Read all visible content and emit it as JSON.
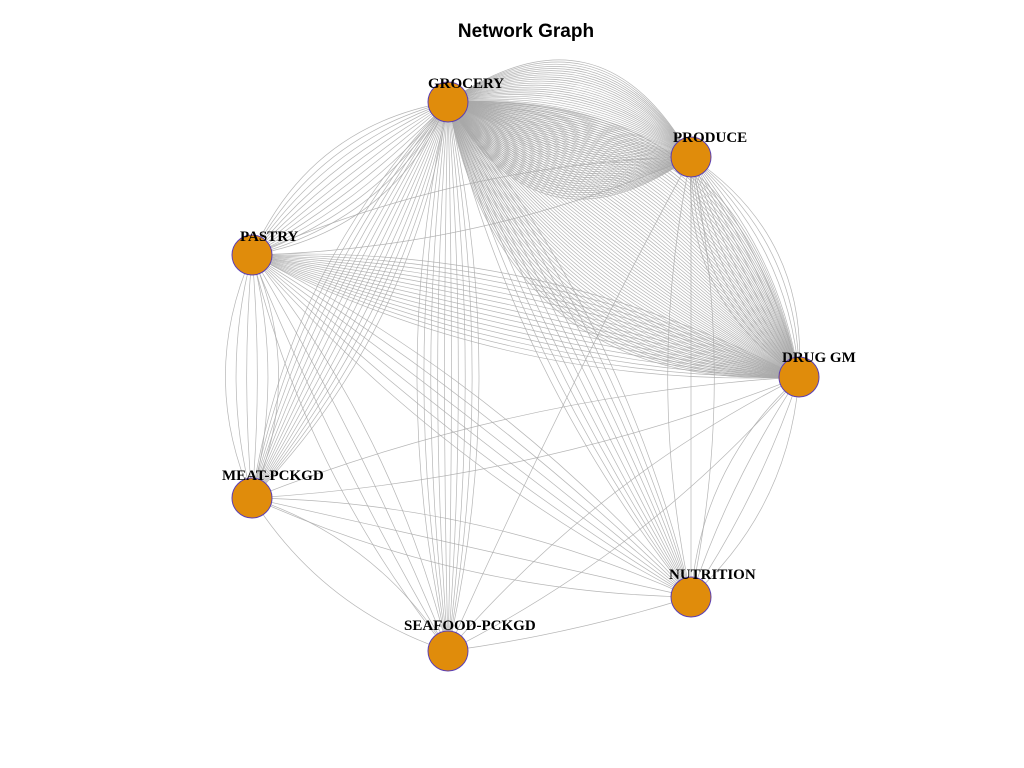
{
  "title": "Network Graph",
  "colors": {
    "node_fill": "#e08c0b",
    "node_stroke": "#5b3fb5",
    "edge": "#a8a8a8",
    "background": "#ffffff"
  },
  "nodes": [
    {
      "id": "GROCERY",
      "label": "GROCERY"
    },
    {
      "id": "PRODUCE",
      "label": "PRODUCE"
    },
    {
      "id": "PASTRY",
      "label": "PASTRY"
    },
    {
      "id": "DRUG GM",
      "label": "DRUG GM"
    },
    {
      "id": "MEAT-PCKGD",
      "label": "MEAT-PCKGD"
    },
    {
      "id": "NUTRITION",
      "label": "NUTRITION"
    },
    {
      "id": "SEAFOOD-PCKGD",
      "label": "SEAFOOD-PCKGD"
    }
  ],
  "edges": [
    {
      "source": "GROCERY",
      "target": "PRODUCE",
      "count": 60
    },
    {
      "source": "GROCERY",
      "target": "DRUG GM",
      "count": 70
    },
    {
      "source": "GROCERY",
      "target": "PASTRY",
      "count": 12
    },
    {
      "source": "GROCERY",
      "target": "MEAT-PCKGD",
      "count": 14
    },
    {
      "source": "GROCERY",
      "target": "SEAFOOD-PCKGD",
      "count": 10
    },
    {
      "source": "GROCERY",
      "target": "NUTRITION",
      "count": 10
    },
    {
      "source": "PRODUCE",
      "target": "DRUG GM",
      "count": 14
    },
    {
      "source": "PRODUCE",
      "target": "PASTRY",
      "count": 2
    },
    {
      "source": "PRODUCE",
      "target": "NUTRITION",
      "count": 3
    },
    {
      "source": "PRODUCE",
      "target": "SEAFOOD-PCKGD",
      "count": 1
    },
    {
      "source": "PASTRY",
      "target": "DRUG GM",
      "count": 16
    },
    {
      "source": "PASTRY",
      "target": "MEAT-PCKGD",
      "count": 6
    },
    {
      "source": "PASTRY",
      "target": "NUTRITION",
      "count": 6
    },
    {
      "source": "PASTRY",
      "target": "SEAFOOD-PCKGD",
      "count": 4
    },
    {
      "source": "DRUG GM",
      "target": "MEAT-PCKGD",
      "count": 2
    },
    {
      "source": "DRUG GM",
      "target": "NUTRITION",
      "count": 4
    },
    {
      "source": "DRUG GM",
      "target": "SEAFOOD-PCKGD",
      "count": 2
    },
    {
      "source": "MEAT-PCKGD",
      "target": "SEAFOOD-PCKGD",
      "count": 2
    },
    {
      "source": "MEAT-PCKGD",
      "target": "NUTRITION",
      "count": 3
    },
    {
      "source": "SEAFOOD-PCKGD",
      "target": "NUTRITION",
      "count": 1
    }
  ]
}
